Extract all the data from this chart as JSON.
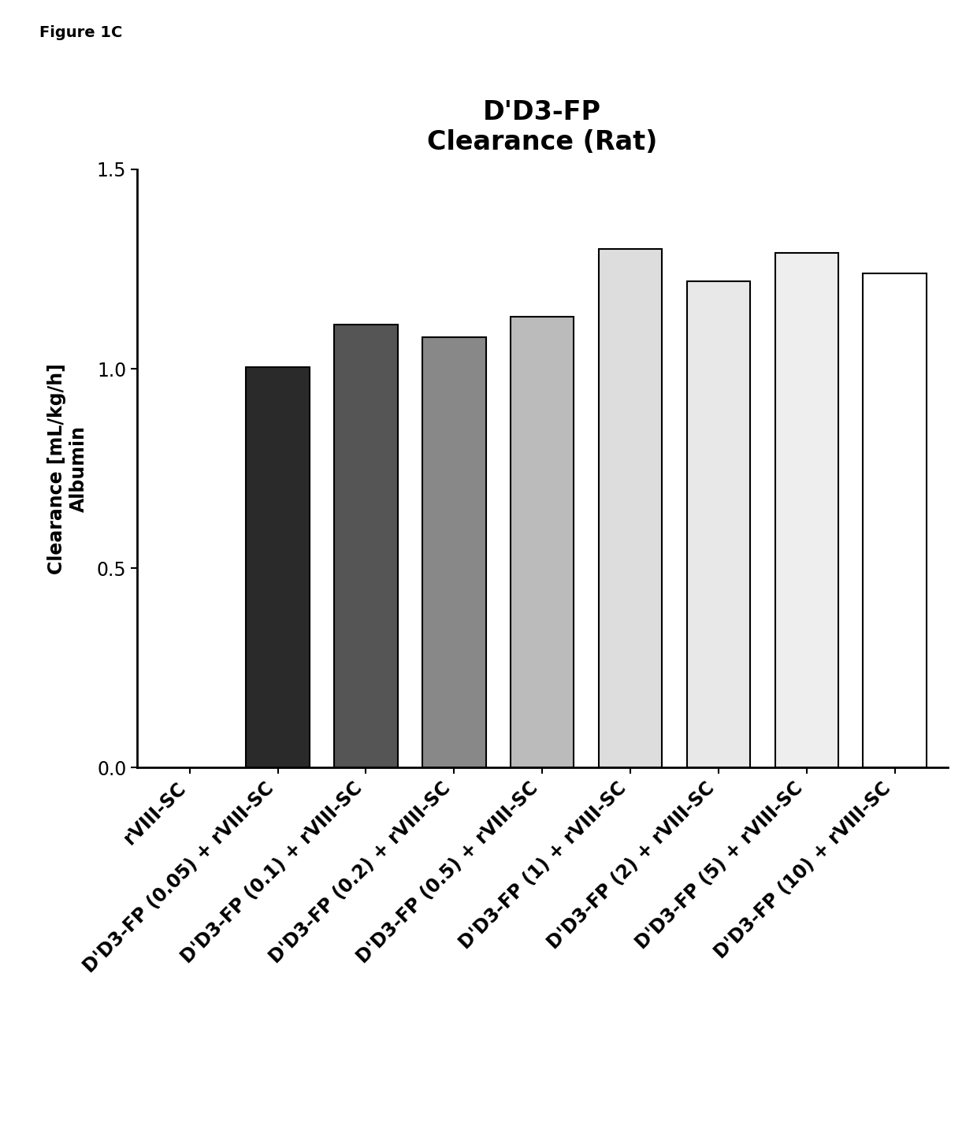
{
  "title": "D'D3-FP\nClearance (Rat)",
  "figure_label": "Figure 1C",
  "ylabel": "Clearance [mL/kg/h]\nAlbumin",
  "ylim": [
    0,
    1.5
  ],
  "yticks": [
    0.0,
    0.5,
    1.0,
    1.5
  ],
  "categories": [
    "rVIII-SC",
    "D'D3-FP (0.05) + rVIII-SC",
    "D'D3-FP (0.1) + rVIII-SC",
    "D'D3-FP (0.2) + rVIII-SC",
    "D'D3-FP (0.5) + rVIII-SC",
    "D'D3-FP (1) + rVIII-SC",
    "D'D3-FP (2) + rVIII-SC",
    "D'D3-FP (5) + rVIII-SC",
    "D'D3-FP (10) + rVIII-SC"
  ],
  "values": [
    0.0,
    1.005,
    1.11,
    1.08,
    1.13,
    1.3,
    1.22,
    1.29,
    1.24
  ],
  "bar_facecolors": [
    "#ffffff",
    "#2a2a2a",
    "#555555",
    "#888888",
    "#bbbbbb",
    "#dddddd",
    "#e8e8e8",
    "#eeeeee",
    "#ffffff"
  ],
  "bar_edgecolors": [
    "#ffffff",
    "#000000",
    "#000000",
    "#000000",
    "#000000",
    "#000000",
    "#000000",
    "#000000",
    "#000000"
  ],
  "bar_linewidths": [
    0,
    1.5,
    1.5,
    1.5,
    1.5,
    1.5,
    1.5,
    1.5,
    1.5
  ],
  "background_color": "#ffffff",
  "title_fontsize": 24,
  "label_fontsize": 17,
  "tick_fontsize": 17,
  "figure_label_fontsize": 14,
  "bar_width": 0.72
}
